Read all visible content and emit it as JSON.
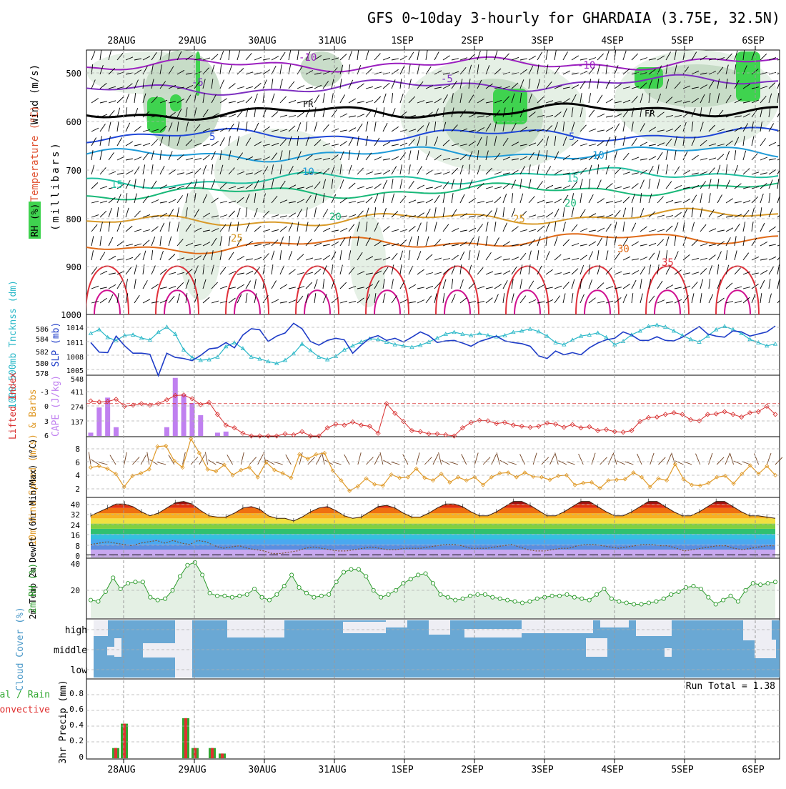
{
  "title": "GFS 0~10day 3-hourly for GHARDAIA (3.75E, 32.5N)",
  "x_axis": {
    "date_labels": [
      "28AUG",
      "29AUG",
      "30AUG",
      "31AUG",
      "1SEP",
      "2SEP",
      "3SEP",
      "4SEP",
      "5SEP",
      "6SEP"
    ]
  },
  "colors": {
    "rh_light": "#e2eee2",
    "rh_mid": "#c3d9c3",
    "rh_dark": "#9fbfa0",
    "rh_green": "#3fd34f",
    "t_minus10": "#9b1fbf",
    "t_minus5": "#7d2fc0",
    "t_freeze": "#000000",
    "t_5": "#1e46d8",
    "t_10": "#1e9bd8",
    "t_15": "#1ec0a0",
    "t_20": "#18b878",
    "t_25": "#d89a28",
    "t_30": "#e06a18",
    "t_35": "#e0303a",
    "t_40": "#d01090",
    "slp": "#1e3cc8",
    "thickness": "#2ab8c8",
    "lifted_index": "#d83030",
    "cape": "#c080f0",
    "wind_speed": "#e09a28",
    "barbs": "#704020",
    "rh_surface": "#2a9a2a",
    "cloud": "#6aa8d4",
    "precip_total": "#30a830",
    "precip_conv": "#e03030"
  },
  "panels": {
    "upper": {
      "ylabel_rh": "RH (%)",
      "ylabel_temp": "Temperature (°C)",
      "ylabel_wind": "Wind (m/s)",
      "ylabel_units": "(millibars)",
      "ticks": [
        "500",
        "600",
        "700",
        "800",
        "900",
        "1000"
      ],
      "contour_labels": [
        "-10",
        "-10",
        "-5",
        "-5",
        "FR",
        "FR",
        "5",
        "5",
        "10",
        "10",
        "15",
        "15",
        "20",
        "20",
        "25",
        "25",
        "30",
        "35"
      ]
    },
    "slp": {
      "ylabel_thick": "1000-500mb Tncknss (dm)",
      "ylabel_slp": "SLP (mb)",
      "thick_ticks": [
        "586",
        "584",
        "582",
        "580",
        "578"
      ],
      "slp_ticks": [
        "1014",
        "1011",
        "1008",
        "1005"
      ]
    },
    "li": {
      "ylabel_li": "Lifted Index",
      "ylabel_cape": "CAPE (J/kg)",
      "li_ticks": [
        "-3",
        "0",
        "3",
        "6"
      ],
      "cape_ticks": [
        "548",
        "411",
        "274",
        "137"
      ]
    },
    "wind": {
      "ylabel": "10m Wind Speed (m/s) & Barbs",
      "ticks": [
        "8",
        "6",
        "4",
        "2"
      ]
    },
    "temp": {
      "ylabel": "2m Temp 2m DewPt (6hr Min/Max) (°C)",
      "ticks": [
        "40",
        "32",
        "24",
        "16",
        "8",
        "0"
      ]
    },
    "rh": {
      "ylabel": "2m RH (%)",
      "ticks": [
        "40",
        "20"
      ]
    },
    "cloud": {
      "ylabel": "Cloud Cover (%)",
      "levels": [
        "high",
        "middle",
        "low"
      ]
    },
    "precip": {
      "ylabel_total": "Total / Rain",
      "ylabel_conv": "Convective",
      "ylabel": "3hr Precip (mm)",
      "ticks": [
        "0.8",
        "0.6",
        "0.4",
        "0.2",
        "0"
      ],
      "run_total": "Run Total = 1.38"
    }
  },
  "chart_data": [
    {
      "type": "line",
      "panel": "sea level pressure and 1000-500mb thickness",
      "x_unit": "3-hourly steps",
      "series": [
        {
          "name": "SLP (mb)",
          "values": [
            1011.0,
            1009.2,
            1009.1,
            1012.2,
            1010.4,
            1009.0,
            1009.0,
            1008.8,
            1004.8,
            1009.0,
            1008.2,
            1008.0,
            1007.6,
            1008.6,
            1009.8,
            1010.0,
            1011.0,
            1010.0,
            1012.4,
            1013.6,
            1013.4,
            1011.2,
            1012.2,
            1012.8,
            1014.6,
            1013.6,
            1011.2,
            1010.5,
            1011.4,
            1011.8,
            1011.5,
            1009.0,
            1010.5,
            1011.8,
            1012.3,
            1011.4,
            1011.8,
            1011.1,
            1012.0,
            1013.0,
            1012.3,
            1011.0,
            1011.3,
            1011.4,
            1010.9,
            1010.3,
            1011.2,
            1011.7,
            1012.2,
            1011.3,
            1011.0,
            1010.8,
            1010.3,
            1008.5,
            1008.0,
            1009.4,
            1008.7,
            1009.1,
            1008.7,
            1010.0,
            1010.9,
            1011.5,
            1011.8,
            1013.0,
            1012.4,
            1011.4,
            1011.4,
            1012.1,
            1011.4,
            1011.3,
            1012.0,
            1013.0,
            1014.0,
            1012.6,
            1012.2,
            1012.0,
            1013.2,
            1013.0,
            1012.2,
            1012.6,
            1013.0,
            1014.1
          ]
        },
        {
          "name": "Thickness (dm)",
          "values": [
            583.9,
            584.5,
            583.3,
            582.8,
            583.6,
            583.7,
            583.2,
            582.9,
            584.1,
            584.9,
            583.8,
            581.4,
            580.2,
            579.8,
            579.9,
            580.3,
            581.9,
            582.5,
            581.6,
            580.3,
            580.0,
            579.6,
            579.3,
            579.8,
            580.8,
            582.3,
            581.3,
            580.3,
            579.9,
            580.4,
            581.4,
            582.0,
            582.6,
            583.1,
            583.0,
            582.6,
            582.2,
            582.0,
            581.8,
            582.1,
            582.6,
            583.2,
            583.8,
            584.1,
            583.8,
            583.6,
            583.9,
            583.6,
            583.4,
            583.6,
            584.1,
            584.3,
            584.6,
            584.2,
            583.5,
            582.5,
            582.2,
            582.9,
            583.5,
            583.7,
            584.0,
            583.3,
            582.2,
            582.7,
            583.7,
            584.3,
            585.0,
            585.2,
            584.9,
            584.3,
            583.6,
            583.0,
            582.6,
            583.5,
            584.5,
            585.0,
            584.5,
            583.9,
            583.0,
            582.5,
            582.0,
            582.3
          ]
        }
      ],
      "slp_range": [
        1005,
        1016
      ],
      "thickness_range": [
        577.6,
        586.6
      ]
    },
    {
      "type": "bar",
      "panel": "lifted index and CAPE",
      "series": [
        {
          "name": "CAPE (J/kg)",
          "values": [
            30,
            260,
            350,
            80,
            0,
            0,
            0,
            0,
            0,
            80,
            530,
            380,
            300,
            190,
            0,
            30,
            40,
            0,
            0,
            0,
            0,
            0,
            0,
            0,
            0,
            0,
            0,
            0,
            0,
            0,
            0,
            0,
            0,
            0,
            0,
            0,
            0,
            0,
            0,
            0,
            0,
            0,
            0,
            0,
            0,
            0,
            0,
            0,
            0,
            0,
            0,
            0,
            0,
            0,
            0,
            0,
            0,
            0,
            0,
            0,
            0,
            0,
            0,
            0,
            0,
            0,
            0,
            0,
            0,
            0,
            0,
            0,
            0,
            0,
            0,
            0,
            0,
            0,
            0,
            0,
            0,
            0
          ]
        },
        {
          "name": "Lifted Index",
          "values": [
            -0.5,
            -0.3,
            -0.4,
            -0.8,
            0.5,
            0.3,
            0.0,
            0.3,
            0.0,
            -0.7,
            -1.5,
            -1.6,
            -0.9,
            0.2,
            -0.2,
            2.0,
            4.0,
            4.5,
            5.5,
            6.0,
            6.0,
            6.0,
            6.0,
            5.6,
            5.8,
            5.2,
            6.0,
            6.0,
            4.5,
            3.8,
            4.0,
            3.4,
            4.0,
            4.2,
            5.5,
            0.0,
            1.8,
            3.3,
            5.0,
            5.2,
            5.6,
            5.6,
            5.8,
            6.0,
            4.5,
            3.5,
            3.1,
            3.2,
            3.7,
            3.5,
            4.0,
            4.2,
            4.4,
            4.2,
            3.6,
            3.8,
            4.4,
            3.9,
            4.5,
            4.3,
            5.0,
            4.8,
            5.2,
            5.3,
            5.0,
            3.3,
            2.6,
            2.5,
            2.0,
            1.7,
            2.0,
            3.0,
            3.2,
            2.0,
            1.9,
            1.5,
            2.0,
            2.5,
            1.7,
            1.5,
            0.5,
            2.0
          ]
        }
      ],
      "li_range": [
        6,
        -5
      ],
      "cape_range": [
        0,
        548
      ]
    },
    {
      "type": "line",
      "panel": "10m wind speed",
      "series": [
        {
          "name": "10m Wind Speed (m/s)",
          "values": [
            5.0,
            5.2,
            4.8,
            4.0,
            2.0,
            3.7,
            4.1,
            4.7,
            8.2,
            8.3,
            6.0,
            5.0,
            9.4,
            7.2,
            4.7,
            4.4,
            5.4,
            3.8,
            4.6,
            5.0,
            3.5,
            5.8,
            4.6,
            4.1,
            3.4,
            7.0,
            6.3,
            7.0,
            7.2,
            4.5,
            3.0,
            1.4,
            2.1,
            3.3,
            2.4,
            2.2,
            3.9,
            3.4,
            3.5,
            4.8,
            3.4,
            3.0,
            4.0,
            2.7,
            3.5,
            3.0,
            3.5,
            2.3,
            3.5,
            4.1,
            4.2,
            3.5,
            4.2,
            3.6,
            3.5,
            3.1,
            3.7,
            3.8,
            2.3,
            2.6,
            2.7,
            1.8,
            3.0,
            3.1,
            3.2,
            4.2,
            3.5,
            2.0,
            3.3,
            3.0,
            5.5,
            3.2,
            2.3,
            2.2,
            2.6,
            3.5,
            3.7,
            2.5,
            4.0,
            5.3,
            4.0,
            5.2,
            3.8
          ]
        }
      ],
      "y_range": [
        0.5,
        9.5
      ]
    },
    {
      "type": "area",
      "panel": "2m temperature and dewpoint",
      "series": [
        {
          "name": "2m Temp (°C)",
          "values": [
            30,
            33,
            36,
            39,
            39,
            37,
            33,
            30,
            32,
            36,
            40,
            41,
            39,
            34,
            30,
            29,
            29,
            32,
            36,
            37,
            35,
            30,
            28,
            28,
            26,
            29,
            33,
            36,
            37,
            34,
            30,
            28,
            29,
            33,
            37,
            38,
            36,
            32,
            29,
            29,
            32,
            36,
            39,
            39,
            37,
            33,
            30,
            30,
            33,
            37,
            41,
            41,
            38,
            34,
            30,
            30,
            33,
            37,
            41,
            41,
            37,
            33,
            30,
            30,
            33,
            37,
            41,
            41,
            37,
            33,
            30,
            30,
            33,
            37,
            41,
            41,
            37,
            33,
            30,
            30,
            29,
            28
          ]
        },
        {
          "name": "2m DewPt (°C)",
          "values": [
            8,
            9,
            10,
            9,
            8,
            7,
            9,
            10,
            11,
            9,
            11,
            9,
            8,
            11,
            10,
            7,
            5,
            6,
            7,
            5,
            4,
            3,
            1,
            1,
            2,
            3,
            5,
            6,
            5,
            4,
            3,
            3,
            4,
            5,
            6,
            5,
            4,
            4,
            5,
            5,
            5,
            6,
            7,
            8,
            8,
            7,
            5,
            5,
            5,
            6,
            7,
            8,
            6,
            4,
            3,
            3,
            4,
            5,
            5,
            7,
            8,
            8,
            7,
            6,
            5,
            6,
            7,
            8,
            8,
            7,
            7,
            5,
            3,
            4,
            5,
            6,
            7,
            7,
            5,
            4,
            5,
            6,
            7,
            7
          ]
        }
      ],
      "y_range": [
        -2,
        43
      ]
    },
    {
      "type": "line",
      "panel": "2m relative humidity",
      "series": [
        {
          "name": "2m RH (%)",
          "values": [
            13,
            12,
            19,
            29,
            21,
            25,
            26,
            26,
            15,
            13,
            14,
            20,
            30,
            38,
            40,
            31,
            18,
            16,
            16,
            15,
            16,
            17,
            21,
            15,
            13,
            17,
            23,
            31,
            22,
            18,
            15,
            16,
            17,
            26,
            33,
            35,
            35,
            30,
            20,
            15,
            17,
            20,
            25,
            28,
            31,
            32,
            25,
            17,
            15,
            13,
            14,
            16,
            17,
            17,
            15,
            14,
            13,
            12,
            11,
            12,
            14,
            15,
            16,
            16,
            17,
            15,
            14,
            13,
            17,
            21,
            14,
            12,
            11,
            10,
            10,
            11,
            12,
            14,
            17,
            19,
            22,
            23,
            21,
            15,
            10,
            13,
            16,
            12,
            20,
            25,
            24,
            25,
            26
          ]
        }
      ],
      "y_range": [
        0,
        42
      ]
    },
    {
      "type": "bar",
      "panel": "3hr precipitation",
      "categories": [
        "28AUG 00-03",
        "28AUG 06-09",
        "29AUG 00-03",
        "29AUG 06-09",
        "29AUG 12-15",
        "29AUG 18-21"
      ],
      "series": [
        {
          "name": "Total / Rain",
          "values": [
            0.13,
            0.44,
            0.51,
            0.13,
            0.13,
            0.06
          ]
        },
        {
          "name": "Convective",
          "values": [
            0.13,
            0.44,
            0.51,
            0.13,
            0.13,
            0.06
          ]
        }
      ],
      "y_range": [
        0,
        1.0
      ]
    }
  ]
}
